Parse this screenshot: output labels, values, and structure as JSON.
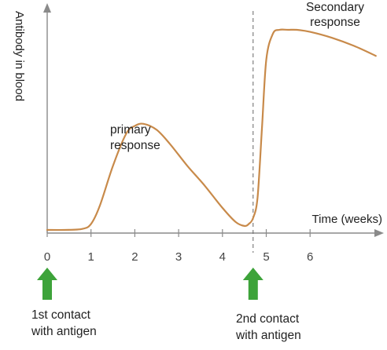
{
  "chart_data": {
    "type": "line",
    "title": "",
    "xlabel": "Time (weeks)",
    "ylabel": "Antibody in blood",
    "xlim": [
      0,
      7.5
    ],
    "ylim": [
      0,
      100
    ],
    "x_ticks": [
      "0",
      "1",
      "2",
      "3",
      "4",
      "5",
      "6"
    ],
    "grid": false,
    "y_ticks_shown": false,
    "series": [
      {
        "x": [
          0,
          0.4,
          0.8,
          1.0,
          1.2,
          1.5,
          1.8,
          2.0,
          2.2,
          2.5,
          2.8,
          3.2,
          3.6,
          4.0,
          4.3,
          4.5,
          4.6,
          4.7,
          4.8,
          4.9,
          5.0,
          5.15,
          5.3,
          5.5,
          5.7,
          6.0,
          6.5,
          7.0,
          7.5
        ],
        "y": [
          0,
          0,
          0.5,
          3,
          12,
          32,
          48,
          52,
          53,
          50,
          43,
          32,
          22,
          11,
          4,
          2,
          3,
          6,
          16,
          50,
          85,
          98,
          100,
          100,
          100,
          99,
          96,
          92,
          87
        ]
      }
    ],
    "reference_line": {
      "x": 4.7,
      "style": "dashed"
    },
    "annotations": [
      {
        "text": "primary\nresponse",
        "x": 2.2,
        "y": 53
      },
      {
        "text": "Secondary\nresponse",
        "x": 5.9,
        "y": 100
      },
      {
        "text": "1st contact\nwith antigen",
        "x": 0
      },
      {
        "text": "2nd contact\nwith antigen",
        "x": 4.7
      }
    ],
    "arrow_color": "#3da33a",
    "curve_color": "#c88a4a"
  }
}
